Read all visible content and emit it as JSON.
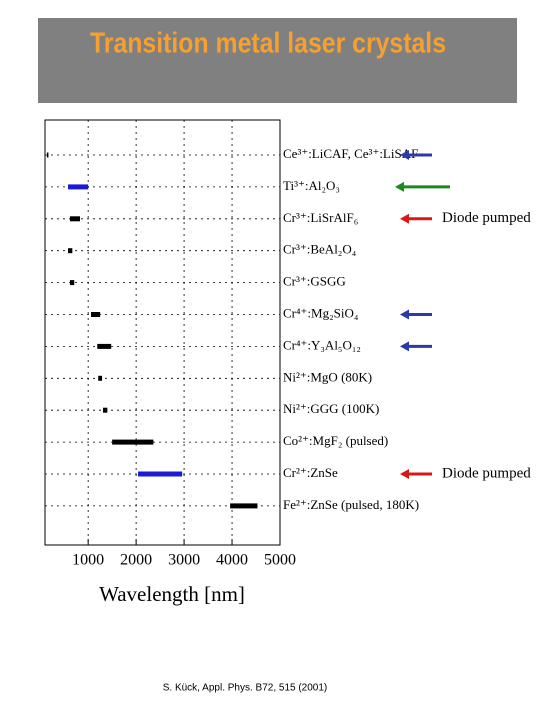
{
  "chart_data": {
    "type": "range",
    "title": "Transition metal laser crystals",
    "xlabel": "Wavelength [nm]",
    "source": "S. Kück, Appl. Phys. B72, 515 (2001)",
    "categories": [
      "Ce³⁺:LiCAF, Ce³⁺:LiSAF",
      "Ti³⁺:Al₂O₃",
      "Cr³⁺:LiSrAlF₆",
      "Cr³⁺:BeAl₂O₄",
      "Cr³⁺:GSGG",
      "Cr⁴⁺:Mg₂SiO₄",
      "Cr⁴⁺:Y₃Al₅O₁₂",
      "Ni²⁺:MgO (80K)",
      "Ni²⁺:GGG (100K)",
      "Co²⁺:MgF₂ (pulsed)",
      "Cr²⁺:ZnSe",
      "Fe²⁺:ZnSe (pulsed, 180K)"
    ],
    "starts": [
      140,
      580,
      620,
      580,
      620,
      1060,
      1190,
      1210,
      1310,
      1500,
      2040,
      3960
    ],
    "ends": [
      170,
      1000,
      830,
      670,
      710,
      1250,
      1480,
      1290,
      1400,
      2360,
      2960,
      4530
    ],
    "colors": [
      "#000000",
      "#1a1ad8",
      "#000000",
      "#000000",
      "#000000",
      "#000000",
      "#000000",
      "#000000",
      "#000000",
      "#000000",
      "#1a1ad8",
      "#000000"
    ],
    "arrows": [
      "#2b3aa8",
      "#1a8a1a",
      "#d81818",
      null,
      null,
      "#2b3aa8",
      "#2b3aa8",
      null,
      null,
      null,
      "#d81818",
      null
    ],
    "notes": [
      null,
      null,
      "Diode pumped",
      null,
      null,
      null,
      null,
      null,
      null,
      null,
      "Diode pumped",
      null
    ],
    "xlim": [
      100,
      5000
    ],
    "xticks": [
      1000,
      2000,
      3000,
      4000,
      5000
    ],
    "grid": true
  }
}
